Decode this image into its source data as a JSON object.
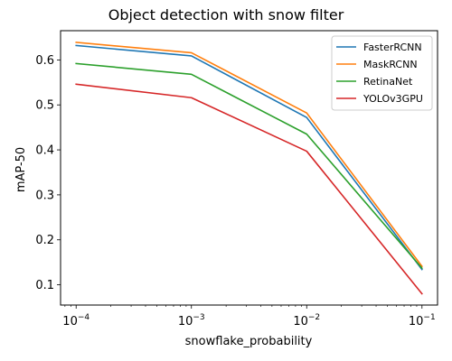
{
  "chart_data": {
    "type": "line",
    "title": "Object detection with snow filter",
    "xlabel": "snowflake_probability",
    "ylabel": "mAP-50",
    "x_scale": "log",
    "x": [
      0.0001,
      0.001,
      0.01,
      0.1
    ],
    "xticks": [
      {
        "value": 0.0001,
        "base": "10",
        "exp": "−4"
      },
      {
        "value": 0.001,
        "base": "10",
        "exp": "−3"
      },
      {
        "value": 0.01,
        "base": "10",
        "exp": "−2"
      },
      {
        "value": 0.1,
        "base": "10",
        "exp": "−1"
      }
    ],
    "yticks": [
      "0.1",
      "0.2",
      "0.3",
      "0.4",
      "0.5",
      "0.6"
    ],
    "ylim": [
      0.055,
      0.665
    ],
    "grid": false,
    "legend_position": "top-right",
    "series": [
      {
        "name": "FasterRCNN",
        "color": "#1f77b4",
        "values": [
          0.632,
          0.609,
          0.472,
          0.134
        ]
      },
      {
        "name": "MaskRCNN",
        "color": "#ff7f0e",
        "values": [
          0.639,
          0.616,
          0.482,
          0.141
        ]
      },
      {
        "name": "RetinaNet",
        "color": "#2ca02c",
        "values": [
          0.592,
          0.568,
          0.435,
          0.137
        ]
      },
      {
        "name": "YOLOv3GPU",
        "color": "#d62728",
        "values": [
          0.546,
          0.516,
          0.397,
          0.08
        ]
      }
    ]
  }
}
